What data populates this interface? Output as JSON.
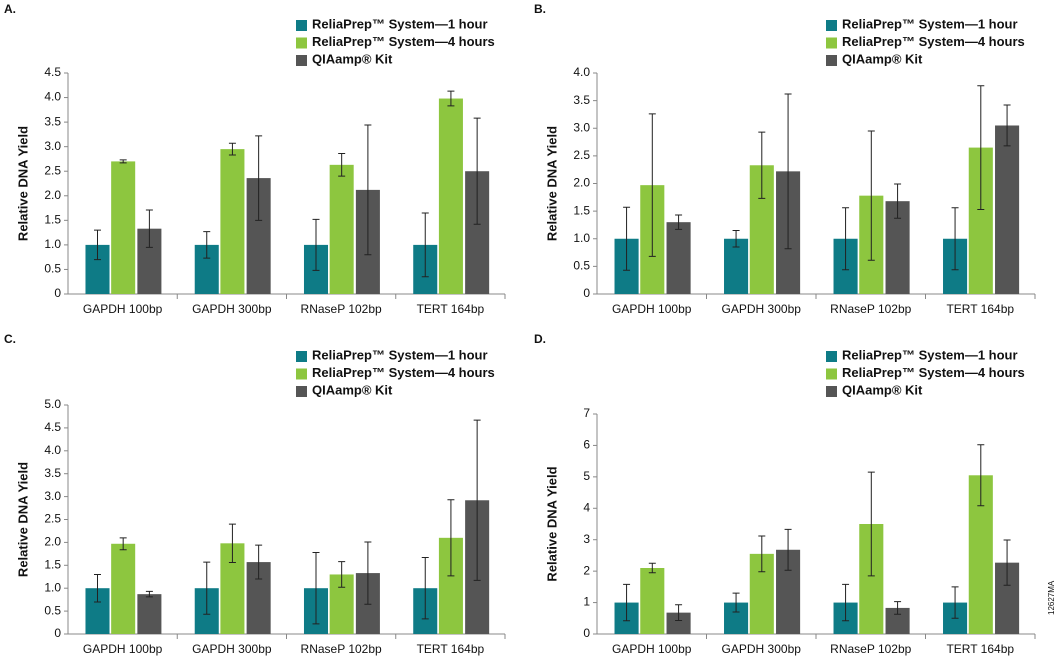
{
  "chart_data": [
    {
      "type": "bar",
      "label": "A.",
      "ylabel": "Relative DNA Yield",
      "categories": [
        "GAPDH 100bp",
        "GAPDH 300bp",
        "RNaseP 102bp",
        "TERT 164bp"
      ],
      "series": [
        {
          "name": "ReliaPrep™ System—1 hour",
          "color": "#0e7b86",
          "values": [
            1.0,
            1.0,
            1.0,
            1.0
          ],
          "errors": [
            0.3,
            0.27,
            0.52,
            0.65
          ]
        },
        {
          "name": "ReliaPrep™ System—4 hours",
          "color": "#8dc63f",
          "values": [
            2.7,
            2.95,
            2.63,
            3.98
          ],
          "errors": [
            0.03,
            0.12,
            0.23,
            0.15
          ]
        },
        {
          "name": "QIAamp® Kit",
          "color": "#555555",
          "values": [
            1.33,
            2.36,
            2.12,
            2.5
          ],
          "errors": [
            0.38,
            0.86,
            1.32,
            1.08
          ]
        }
      ],
      "ylim": [
        0,
        4.5
      ],
      "yticks": [
        0,
        0.5,
        {
          "value": 1,
          "label": "1.0"
        },
        1.5,
        {
          "value": 2,
          "label": "2.0"
        },
        2.5,
        {
          "value": 3,
          "label": "3.0"
        },
        3.5,
        {
          "value": 4,
          "label": "4.0"
        },
        4.5
      ]
    },
    {
      "type": "bar",
      "label": "B.",
      "ylabel": "Relative DNA Yield",
      "categories": [
        "GAPDH 100bp",
        "GAPDH 300bp",
        "RNaseP 102bp",
        "TERT 164bp"
      ],
      "series": [
        {
          "name": "ReliaPrep™ System—1 hour",
          "color": "#0e7b86",
          "values": [
            1.0,
            1.0,
            1.0,
            1.0
          ],
          "errors": [
            0.57,
            0.15,
            0.56,
            0.56
          ]
        },
        {
          "name": "ReliaPrep™ System—4 hours",
          "color": "#8dc63f",
          "values": [
            1.97,
            2.33,
            1.78,
            2.65
          ],
          "errors": [
            1.29,
            0.6,
            1.17,
            1.12
          ]
        },
        {
          "name": "QIAamp® Kit",
          "color": "#555555",
          "values": [
            1.3,
            2.22,
            1.68,
            3.05
          ],
          "errors": [
            0.13,
            1.4,
            0.31,
            0.37
          ]
        }
      ],
      "ylim": [
        0,
        4
      ],
      "yticks": [
        0,
        0.5,
        {
          "value": 1,
          "label": "1.0"
        },
        1.5,
        {
          "value": 2,
          "label": "2.0"
        },
        2.5,
        {
          "value": 3,
          "label": "3.0"
        },
        3.5,
        {
          "value": 4,
          "label": "4.0"
        }
      ]
    },
    {
      "type": "bar",
      "label": "C.",
      "ylabel": "Relative DNA Yield",
      "categories": [
        "GAPDH 100bp",
        "GAPDH 300bp",
        "RNaseP 102bp",
        "TERT 164bp"
      ],
      "series": [
        {
          "name": "ReliaPrep™ System—1 hour",
          "color": "#0e7b86",
          "values": [
            1.0,
            1.0,
            1.0,
            1.0
          ],
          "errors": [
            0.3,
            0.57,
            0.78,
            0.67
          ]
        },
        {
          "name": "ReliaPrep™ System—4 hours",
          "color": "#8dc63f",
          "values": [
            1.97,
            1.98,
            1.3,
            2.1
          ],
          "errors": [
            0.13,
            0.42,
            0.28,
            0.83
          ]
        },
        {
          "name": "QIAamp® Kit",
          "color": "#555555",
          "values": [
            0.87,
            1.57,
            1.33,
            2.92
          ],
          "errors": [
            0.06,
            0.37,
            0.68,
            1.75
          ]
        }
      ],
      "ylim": [
        0,
        5
      ],
      "yticks": [
        0,
        0.5,
        {
          "value": 1,
          "label": "1.0"
        },
        1.5,
        {
          "value": 2,
          "label": "2.0"
        },
        2.5,
        {
          "value": 3,
          "label": "3.0"
        },
        3.5,
        {
          "value": 4,
          "label": "4.0"
        },
        4.5,
        {
          "value": 5,
          "label": "5.0"
        }
      ]
    },
    {
      "type": "bar",
      "label": "D.",
      "ylabel": "Relative DNA Yield",
      "categories": [
        "GAPDH 100bp",
        "GAPDH 300bp",
        "RNaseP 102bp",
        "TERT 164bp"
      ],
      "series": [
        {
          "name": "ReliaPrep™ System—1 hour",
          "color": "#0e7b86",
          "values": [
            1.0,
            1.0,
            1.0,
            1.0
          ],
          "errors": [
            0.58,
            0.3,
            0.58,
            0.5
          ]
        },
        {
          "name": "ReliaPrep™ System—4 hours",
          "color": "#8dc63f",
          "values": [
            2.1,
            2.55,
            3.5,
            5.05
          ],
          "errors": [
            0.15,
            0.57,
            1.65,
            0.97
          ]
        },
        {
          "name": "QIAamp® Kit",
          "color": "#555555",
          "values": [
            0.68,
            2.68,
            0.83,
            2.27
          ],
          "errors": [
            0.25,
            0.65,
            0.2,
            0.72
          ]
        }
      ],
      "ylim": [
        0,
        7
      ],
      "yticks": [
        0,
        1,
        2,
        3,
        4,
        5,
        6,
        7
      ]
    }
  ],
  "figure_code": "12627MA"
}
